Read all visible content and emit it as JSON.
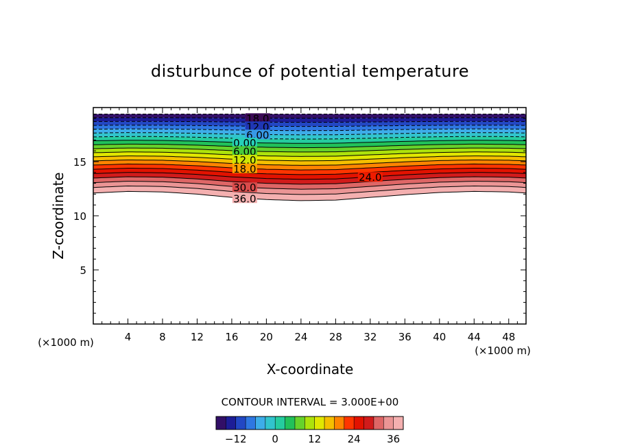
{
  "chart_data": {
    "type": "contour",
    "title": "disturbunce of potential temperature",
    "xlabel": "X-coordinate",
    "ylabel": "Z-coordinate",
    "x_unit": "(×1000 m)",
    "y_unit": "(×1000 m)",
    "xlim": [
      0,
      50
    ],
    "ylim": [
      0,
      20
    ],
    "x_ticks": [
      4,
      8,
      12,
      16,
      20,
      24,
      28,
      32,
      36,
      40,
      44,
      48
    ],
    "y_ticks": [
      5,
      10,
      15
    ],
    "contour_interval_text": "CONTOUR INTERVAL = 3.000E+00",
    "contour_interval": 3,
    "levels_min": -18,
    "levels_max": 36,
    "colorbar_ticks": [
      -12,
      0,
      12,
      24,
      36
    ],
    "contour_labels": [
      {
        "text": "18.0",
        "x": 19,
        "level": -18
      },
      {
        "text": "12.0",
        "x": 19,
        "level": -12
      },
      {
        "text": "6.00",
        "x": 19,
        "level": -6
      },
      {
        "text": "0.00",
        "x": 17.5,
        "level": 0
      },
      {
        "text": "6.00",
        "x": 17.5,
        "level": 6
      },
      {
        "text": "12.0",
        "x": 17.5,
        "level": 12
      },
      {
        "text": "18.0",
        "x": 17.5,
        "level": 18
      },
      {
        "text": "24.0",
        "x": 32,
        "level": 24
      },
      {
        "text": "30.0",
        "x": 17.5,
        "level": 30
      },
      {
        "text": "36.0",
        "x": 17.5,
        "level": 36
      }
    ],
    "lower_boundary_profile": {
      "x": [
        0,
        4,
        8,
        12,
        16,
        20,
        24,
        28,
        32,
        36,
        40,
        44,
        48,
        50
      ],
      "z": [
        12.1,
        12.25,
        12.2,
        12.0,
        11.7,
        11.5,
        11.4,
        11.45,
        11.7,
        11.95,
        12.15,
        12.25,
        12.2,
        12.1
      ]
    },
    "grid": false,
    "palette": [
      "#3a0a55",
      "#1a1f9e",
      "#2864e0",
      "#3fb4ea",
      "#26d0b8",
      "#20c050",
      "#9ae010",
      "#e8e800",
      "#ffa000",
      "#ff2a00",
      "#cc0000",
      "#e07070",
      "#f4b0b0"
    ]
  }
}
